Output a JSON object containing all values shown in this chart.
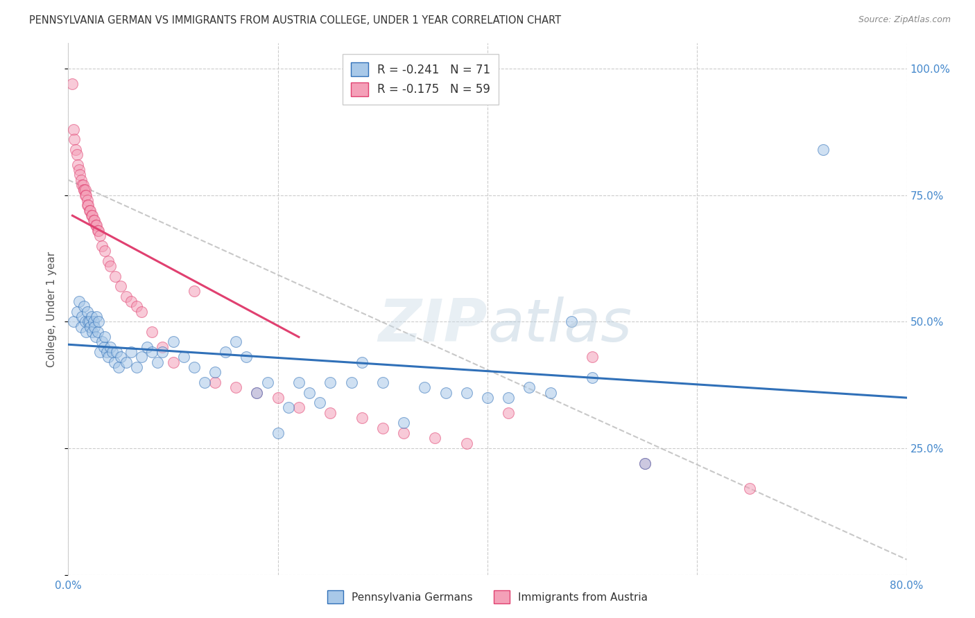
{
  "title": "PENNSYLVANIA GERMAN VS IMMIGRANTS FROM AUSTRIA COLLEGE, UNDER 1 YEAR CORRELATION CHART",
  "source": "Source: ZipAtlas.com",
  "ylabel": "College, Under 1 year",
  "x_ticklabels": [
    "0.0%",
    "",
    "",
    "",
    "80.0%"
  ],
  "x_tickvals": [
    0.0,
    0.2,
    0.4,
    0.6,
    0.8
  ],
  "y_ticklabels_right": [
    "100.0%",
    "75.0%",
    "50.0%",
    "25.0%"
  ],
  "y_tickvals": [
    1.0,
    0.75,
    0.5,
    0.25
  ],
  "xlim": [
    0,
    0.8
  ],
  "ylim": [
    0,
    1.05
  ],
  "legend_blue_label": "R = -0.241   N = 71",
  "legend_pink_label": "R = -0.175   N = 59",
  "blue_scatter_color": "#a8c8e8",
  "pink_scatter_color": "#f4a0b8",
  "blue_line_color": "#3070b8",
  "pink_line_color": "#e04070",
  "watermark_color": "#dce8f0",
  "blue_x": [
    0.005,
    0.008,
    0.01,
    0.012,
    0.013,
    0.015,
    0.016,
    0.017,
    0.018,
    0.019,
    0.02,
    0.021,
    0.022,
    0.023,
    0.024,
    0.025,
    0.026,
    0.027,
    0.028,
    0.029,
    0.03,
    0.032,
    0.034,
    0.035,
    0.037,
    0.038,
    0.04,
    0.042,
    0.044,
    0.046,
    0.048,
    0.05,
    0.055,
    0.06,
    0.065,
    0.07,
    0.075,
    0.08,
    0.085,
    0.09,
    0.1,
    0.11,
    0.12,
    0.13,
    0.14,
    0.15,
    0.16,
    0.17,
    0.18,
    0.19,
    0.2,
    0.21,
    0.22,
    0.23,
    0.24,
    0.25,
    0.27,
    0.28,
    0.3,
    0.32,
    0.34,
    0.36,
    0.38,
    0.4,
    0.42,
    0.44,
    0.46,
    0.48,
    0.5,
    0.55,
    0.72
  ],
  "blue_y": [
    0.5,
    0.52,
    0.54,
    0.49,
    0.51,
    0.53,
    0.5,
    0.48,
    0.52,
    0.5,
    0.5,
    0.49,
    0.51,
    0.48,
    0.5,
    0.49,
    0.47,
    0.51,
    0.48,
    0.5,
    0.44,
    0.46,
    0.45,
    0.47,
    0.44,
    0.43,
    0.45,
    0.44,
    0.42,
    0.44,
    0.41,
    0.43,
    0.42,
    0.44,
    0.41,
    0.43,
    0.45,
    0.44,
    0.42,
    0.44,
    0.46,
    0.43,
    0.41,
    0.38,
    0.4,
    0.44,
    0.46,
    0.43,
    0.36,
    0.38,
    0.28,
    0.33,
    0.38,
    0.36,
    0.34,
    0.38,
    0.38,
    0.42,
    0.38,
    0.3,
    0.37,
    0.36,
    0.36,
    0.35,
    0.35,
    0.37,
    0.36,
    0.5,
    0.39,
    0.22,
    0.84
  ],
  "pink_x": [
    0.004,
    0.005,
    0.006,
    0.007,
    0.008,
    0.009,
    0.01,
    0.011,
    0.012,
    0.013,
    0.014,
    0.015,
    0.015,
    0.016,
    0.016,
    0.017,
    0.018,
    0.018,
    0.019,
    0.02,
    0.021,
    0.022,
    0.023,
    0.024,
    0.025,
    0.026,
    0.027,
    0.028,
    0.029,
    0.03,
    0.032,
    0.035,
    0.038,
    0.04,
    0.045,
    0.05,
    0.055,
    0.06,
    0.065,
    0.07,
    0.08,
    0.09,
    0.1,
    0.12,
    0.14,
    0.16,
    0.18,
    0.2,
    0.22,
    0.25,
    0.28,
    0.3,
    0.32,
    0.35,
    0.38,
    0.42,
    0.5,
    0.55,
    0.65
  ],
  "pink_y": [
    0.97,
    0.88,
    0.86,
    0.84,
    0.83,
    0.81,
    0.8,
    0.79,
    0.78,
    0.77,
    0.77,
    0.76,
    0.76,
    0.76,
    0.75,
    0.75,
    0.74,
    0.73,
    0.73,
    0.72,
    0.72,
    0.71,
    0.71,
    0.7,
    0.7,
    0.69,
    0.69,
    0.68,
    0.68,
    0.67,
    0.65,
    0.64,
    0.62,
    0.61,
    0.59,
    0.57,
    0.55,
    0.54,
    0.53,
    0.52,
    0.48,
    0.45,
    0.42,
    0.56,
    0.38,
    0.37,
    0.36,
    0.35,
    0.33,
    0.32,
    0.31,
    0.29,
    0.28,
    0.27,
    0.26,
    0.32,
    0.43,
    0.22,
    0.17
  ],
  "pink_trendline_x0": 0.004,
  "pink_trendline_x1": 0.22,
  "blue_trendline_start": 0.0,
  "blue_trendline_end": 0.8,
  "dashed_line_x": [
    0.0,
    0.8
  ],
  "dashed_line_y": [
    0.78,
    0.03
  ]
}
